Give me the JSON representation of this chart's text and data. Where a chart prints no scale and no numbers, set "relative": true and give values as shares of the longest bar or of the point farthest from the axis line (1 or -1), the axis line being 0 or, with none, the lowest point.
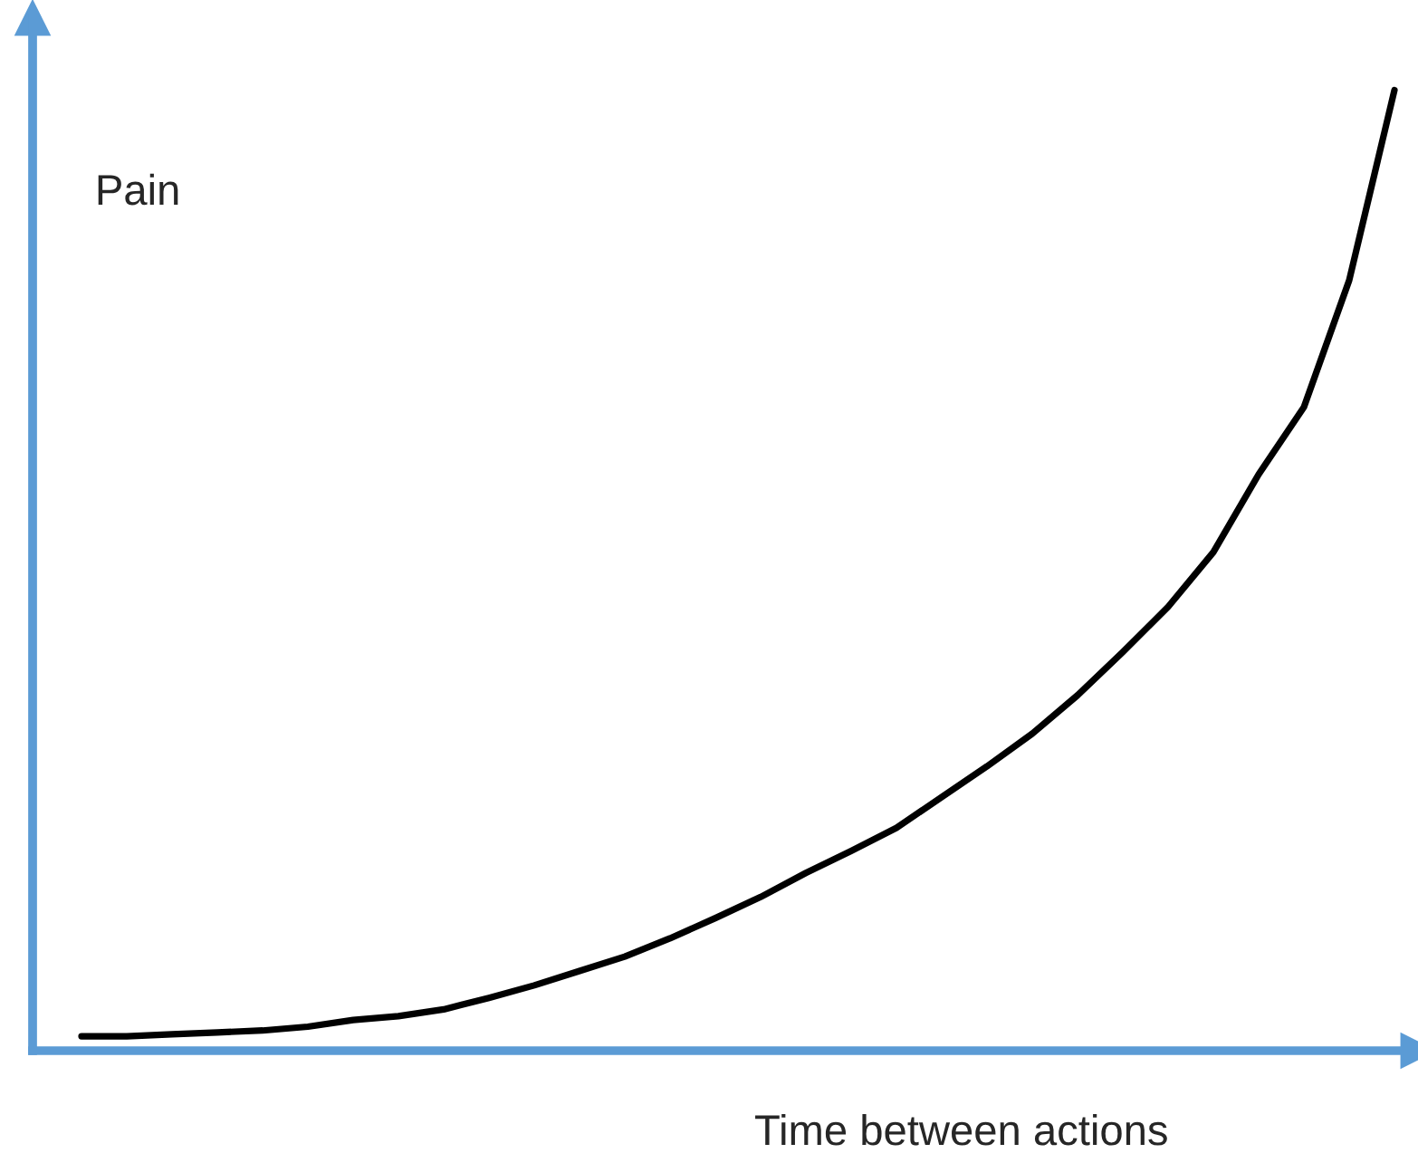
{
  "chart_data": {
    "type": "line",
    "relative": true,
    "xlabel": "Time between actions",
    "ylabel": "Pain",
    "categories": [
      null,
      null,
      null,
      null,
      null,
      null,
      null,
      null,
      null,
      null,
      null,
      null,
      null,
      null,
      null,
      null,
      null,
      null,
      null,
      null,
      null,
      null,
      null,
      null,
      null,
      null,
      null,
      null,
      null,
      null
    ],
    "series": [
      {
        "color": "#000000",
        "values": [
          0.015,
          0.015,
          0.017,
          0.019,
          0.021,
          0.025,
          0.032,
          0.036,
          0.043,
          0.055,
          0.068,
          0.083,
          0.098,
          0.117,
          0.138,
          0.16,
          0.185,
          0.208,
          0.232,
          0.264,
          0.296,
          0.33,
          0.37,
          0.415,
          0.462,
          0.519,
          0.6,
          0.67,
          0.802,
          1.0
        ]
      }
    ],
    "legend": false,
    "marker": "none",
    "line_style": "solid"
  }
}
